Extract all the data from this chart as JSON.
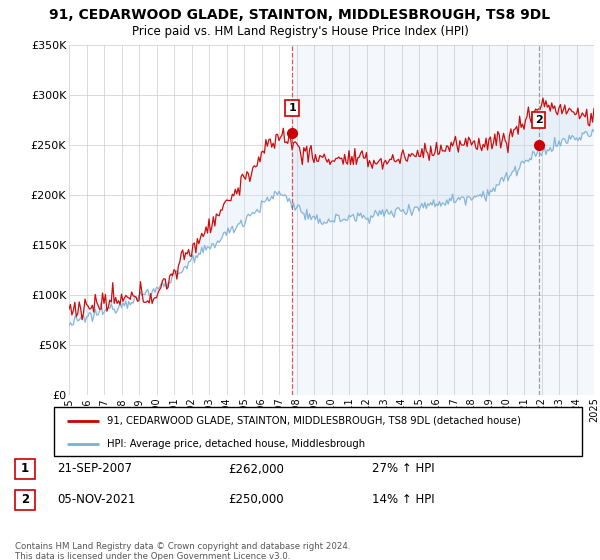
{
  "title": "91, CEDARWOOD GLADE, STAINTON, MIDDLESBROUGH, TS8 9DL",
  "subtitle": "Price paid vs. HM Land Registry's House Price Index (HPI)",
  "ylim": [
    0,
    350000
  ],
  "yticks": [
    0,
    50000,
    100000,
    150000,
    200000,
    250000,
    300000,
    350000
  ],
  "ytick_labels": [
    "£0",
    "£50K",
    "£100K",
    "£150K",
    "£200K",
    "£250K",
    "£300K",
    "£350K"
  ],
  "house_color": "#cc0000",
  "hpi_color": "#7bafd4",
  "fill_color": "#d6e8f5",
  "marker1_date": "21-SEP-2007",
  "marker1_price": 262000,
  "marker1_hpi": "27% ↑ HPI",
  "marker2_date": "05-NOV-2021",
  "marker2_price": 250000,
  "marker2_hpi": "14% ↑ HPI",
  "legend_house": "91, CEDARWOOD GLADE, STAINTON, MIDDLESBROUGH, TS8 9DL (detached house)",
  "legend_hpi": "HPI: Average price, detached house, Middlesbrough",
  "footer": "Contains HM Land Registry data © Crown copyright and database right 2024.\nThis data is licensed under the Open Government Licence v3.0.",
  "year_start": 1995,
  "year_end": 2025,
  "sale1_year": 2007.75,
  "sale1_price": 262000,
  "sale2_year": 2021.833,
  "sale2_price": 250000
}
